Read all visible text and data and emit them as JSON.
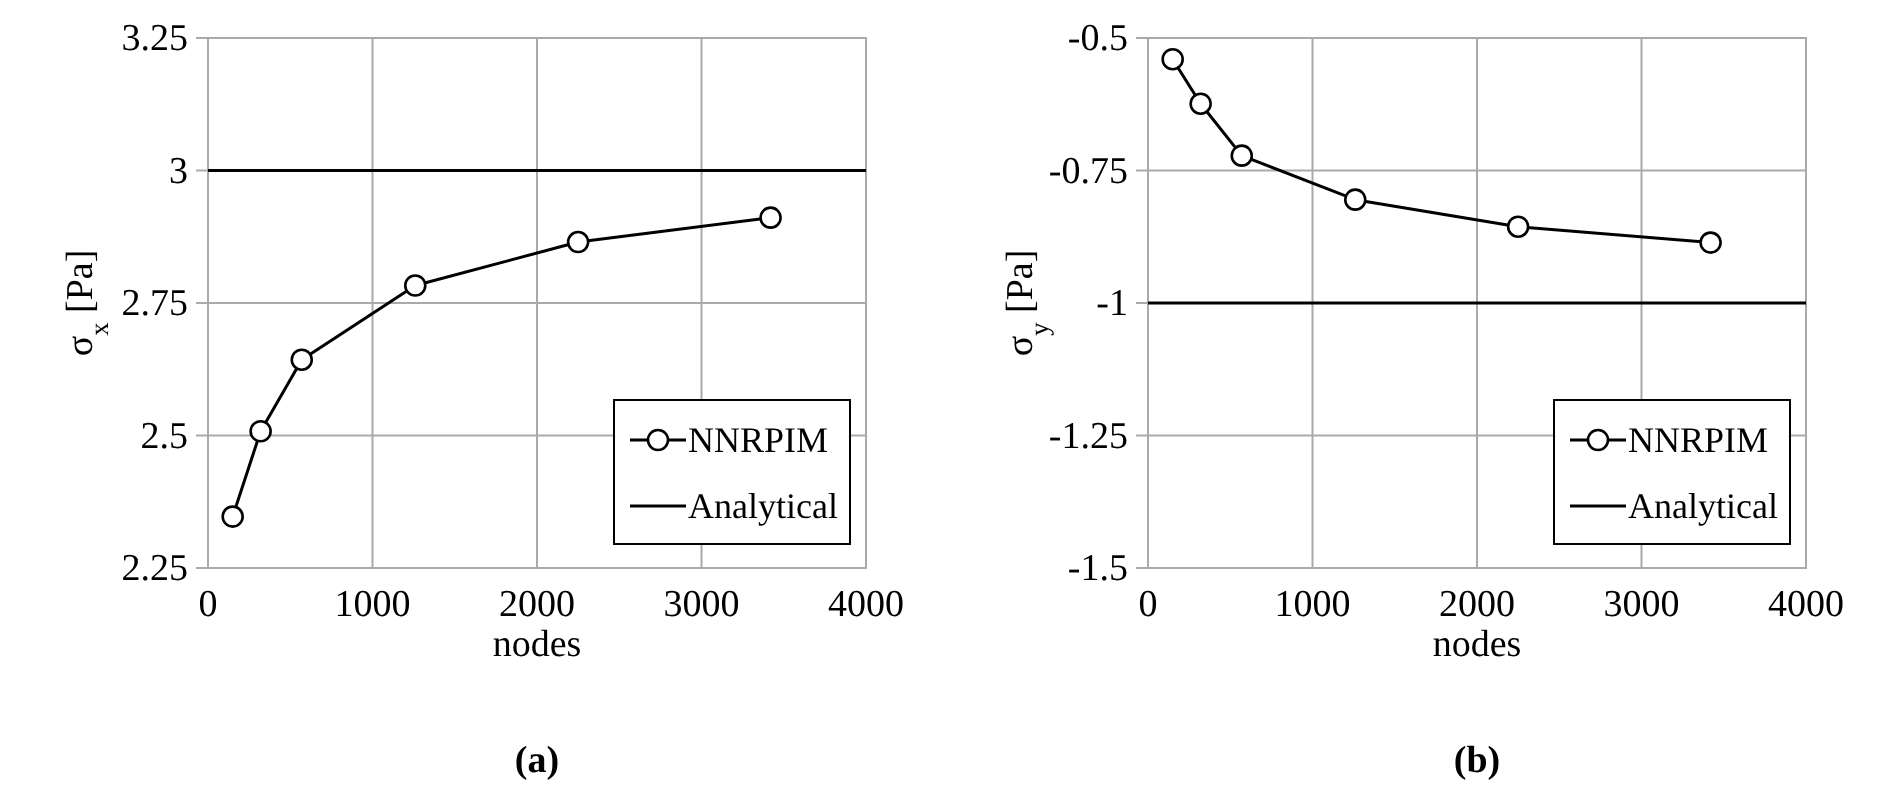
{
  "chart_data": [
    {
      "type": "line",
      "title": "(a)",
      "xlabel": "nodes",
      "ylabel": "σ$_{x}$ [Pa]",
      "xlim": [
        0,
        4000
      ],
      "xticks": [
        0,
        1000,
        2000,
        3000,
        4000
      ],
      "ylim": [
        2.25,
        3.25
      ],
      "yticks": [
        2.25,
        2.5,
        2.75,
        3,
        3.25
      ],
      "grid": true,
      "legend": "bottom right",
      "series": [
        {
          "name": "NNRPIM",
          "color": "#000000",
          "marker": "circle",
          "x": [
            150,
            320,
            570,
            1260,
            2250,
            3420
          ],
          "values": [
            2.347,
            2.508,
            2.643,
            2.783,
            2.865,
            2.911
          ]
        },
        {
          "name": "Analytical",
          "color": "#000000",
          "marker": "none",
          "x": [
            0,
            4000
          ],
          "values": [
            3,
            3
          ]
        }
      ]
    },
    {
      "type": "line",
      "title": "(b)",
      "xlabel": "nodes",
      "ylabel": "σ$_{y}$ [Pa]",
      "xlim": [
        0,
        4000
      ],
      "xticks": [
        0,
        1000,
        2000,
        3000,
        4000
      ],
      "ylim": [
        -1.5,
        -0.5
      ],
      "yticks": [
        -1.5,
        -1.25,
        -1,
        -0.75,
        -0.5
      ],
      "grid": true,
      "legend": "bottom right",
      "series": [
        {
          "name": "NNRPIM",
          "color": "#000000",
          "marker": "circle",
          "x": [
            150,
            320,
            570,
            1260,
            2250,
            3420
          ],
          "values": [
            -0.54,
            -0.624,
            -0.722,
            -0.805,
            -0.856,
            -0.886
          ]
        },
        {
          "name": "Analytical",
          "color": "#000000",
          "marker": "none",
          "x": [
            0,
            4000
          ],
          "values": [
            -1,
            -1
          ]
        }
      ]
    }
  ]
}
